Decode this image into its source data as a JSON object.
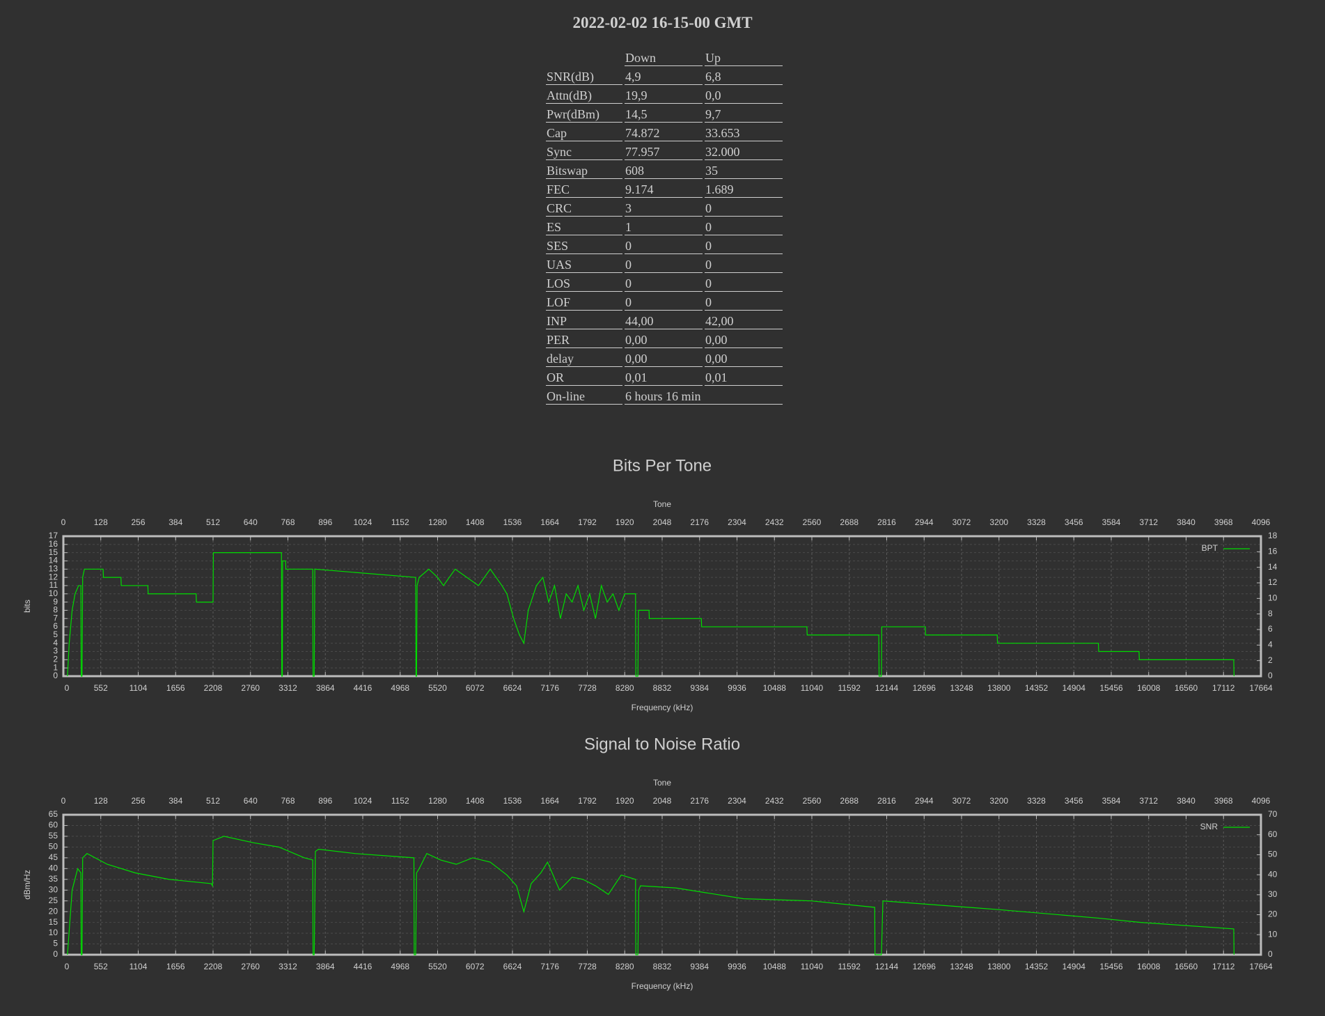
{
  "header": {
    "title": "2022-02-02 16-15-00 GMT"
  },
  "table": {
    "columns": [
      "Down",
      "Up"
    ],
    "rows": [
      [
        "SNR(dB)",
        "4,9",
        "6,8"
      ],
      [
        "Attn(dB)",
        "19,9",
        "0,0"
      ],
      [
        "Pwr(dBm)",
        "14,5",
        "9,7"
      ],
      [
        "Cap",
        "74.872",
        "33.653"
      ],
      [
        "Sync",
        "77.957",
        "32.000"
      ],
      [
        "Bitswap",
        "608",
        "35"
      ],
      [
        "FEC",
        "9.174",
        "1.689"
      ],
      [
        "CRC",
        "3",
        "0"
      ],
      [
        "ES",
        "1",
        "0"
      ],
      [
        "SES",
        "0",
        "0"
      ],
      [
        "UAS",
        "0",
        "0"
      ],
      [
        "LOS",
        "0",
        "0"
      ],
      [
        "LOF",
        "0",
        "0"
      ],
      [
        "INP",
        "44,00",
        "42,00"
      ],
      [
        "PER",
        "0,00",
        "0,00"
      ],
      [
        "delay",
        "0,00",
        "0,00"
      ],
      [
        "OR",
        "0,01",
        "0,01"
      ],
      [
        "On-line",
        "6 hours 16 min"
      ]
    ]
  },
  "chart_data": [
    {
      "type": "line",
      "title": "Bits Per Tone",
      "xlabel": "Tone",
      "x2label": "Frequency (kHz)",
      "ylabel": "bits",
      "xlim": [
        0,
        4096
      ],
      "xticks": [
        0,
        128,
        256,
        384,
        512,
        640,
        768,
        896,
        1024,
        1152,
        1280,
        1408,
        1536,
        1664,
        1792,
        1920,
        2048,
        2176,
        2304,
        2432,
        2560,
        2688,
        2816,
        2944,
        3072,
        3200,
        3328,
        3456,
        3584,
        3712,
        3840,
        3968,
        4096
      ],
      "x2lim": [
        0,
        17664
      ],
      "x2ticks": [
        0,
        552,
        1104,
        1656,
        2208,
        2760,
        3312,
        3864,
        4416,
        4968,
        5520,
        6072,
        6624,
        7176,
        7728,
        8280,
        8832,
        9384,
        9936,
        10488,
        11040,
        11592,
        12144,
        12696,
        13248,
        13800,
        14352,
        14904,
        15456,
        16008,
        16560,
        17112,
        17664
      ],
      "ylim": [
        0,
        17
      ],
      "yticks": [
        0,
        1,
        2,
        3,
        4,
        5,
        6,
        7,
        8,
        9,
        10,
        11,
        12,
        13,
        14,
        15,
        16,
        17
      ],
      "y2lim": [
        0,
        18
      ],
      "y2ticks": [
        0,
        2,
        4,
        6,
        8,
        10,
        12,
        14,
        16,
        18
      ],
      "grid": true,
      "legend": "top-right",
      "x": [
        14,
        20,
        30,
        40,
        52,
        60,
        61,
        64,
        66,
        72,
        136,
        137,
        197,
        198,
        289,
        290,
        454,
        455,
        512,
        513,
        746,
        747,
        749,
        750,
        760,
        761,
        853,
        854,
        858,
        860,
        1205,
        1206,
        1208,
        1210,
        1217,
        1250,
        1280,
        1300,
        1340,
        1380,
        1420,
        1460,
        1500,
        1517,
        1540,
        1560,
        1575,
        1590,
        1618,
        1640,
        1660,
        1680,
        1700,
        1720,
        1740,
        1760,
        1780,
        1800,
        1820,
        1840,
        1860,
        1880,
        1900,
        1920,
        1957,
        1958,
        1965,
        1967,
        2003,
        2004,
        2182,
        2183,
        2543,
        2544,
        2789,
        2790,
        2798,
        2799,
        2948,
        2949,
        3194,
        3195,
        3540,
        3541,
        3679,
        3680,
        4003,
        4004
      ],
      "series": [
        {
          "name": "BPT",
          "color": "#00dd00",
          "values": [
            0,
            4,
            8,
            10,
            11,
            11,
            0,
            0,
            12,
            13,
            13,
            12,
            12,
            11,
            11,
            10,
            10,
            9,
            9,
            15,
            15,
            0,
            0,
            14,
            14,
            13,
            13,
            0,
            0,
            13,
            12,
            0,
            0,
            11,
            12,
            13,
            12,
            11,
            13,
            12,
            11,
            13,
            11,
            10,
            7,
            5,
            4,
            8,
            11,
            12,
            9,
            11,
            7,
            10,
            9,
            11,
            8,
            10,
            7,
            11,
            9,
            10,
            8,
            10,
            10,
            0,
            0,
            8,
            8,
            7,
            7,
            6,
            6,
            5,
            5,
            0,
            0,
            6,
            6,
            5,
            5,
            4,
            4,
            3,
            3,
            2,
            2,
            0
          ]
        }
      ]
    },
    {
      "type": "line",
      "title": "Signal to Noise Ratio",
      "xlabel": "Tone",
      "x2label": "Frequency (kHz)",
      "ylabel": "dBm/Hz",
      "xlim": [
        0,
        4096
      ],
      "xticks": [
        0,
        128,
        256,
        384,
        512,
        640,
        768,
        896,
        1024,
        1152,
        1280,
        1408,
        1536,
        1664,
        1792,
        1920,
        2048,
        2176,
        2304,
        2432,
        2560,
        2688,
        2816,
        2944,
        3072,
        3200,
        3328,
        3456,
        3584,
        3712,
        3840,
        3968,
        4096
      ],
      "x2lim": [
        0,
        17664
      ],
      "x2ticks": [
        0,
        552,
        1104,
        1656,
        2208,
        2760,
        3312,
        3864,
        4416,
        4968,
        5520,
        6072,
        6624,
        7176,
        7728,
        8280,
        8832,
        9384,
        9936,
        10488,
        11040,
        11592,
        12144,
        12696,
        13248,
        13800,
        14352,
        14904,
        15456,
        16008,
        16560,
        17112,
        17664
      ],
      "ylim": [
        0,
        65
      ],
      "yticks": [
        0,
        5,
        10,
        15,
        20,
        25,
        30,
        35,
        40,
        45,
        50,
        55,
        60,
        65
      ],
      "y2lim": [
        0,
        70
      ],
      "y2ticks": [
        0,
        10,
        20,
        30,
        40,
        50,
        60,
        70
      ],
      "grid": true,
      "legend": "top-right",
      "x": [
        14,
        30,
        49,
        60,
        61,
        64,
        66,
        81,
        150,
        246,
        361,
        506,
        510,
        512,
        549,
        650,
        737,
        824,
        853,
        854,
        858,
        862,
        873,
        997,
        1199,
        1200,
        1205,
        1208,
        1217,
        1243,
        1290,
        1344,
        1400,
        1460,
        1517,
        1550,
        1575,
        1600,
        1633,
        1656,
        1697,
        1740,
        1777,
        1820,
        1864,
        1908,
        1957,
        1958,
        1965,
        1968,
        1974,
        2095,
        2327,
        2558,
        2775,
        2776,
        2798,
        2803,
        3194,
        3540,
        3685,
        4003,
        4004
      ],
      "series": [
        {
          "name": "SNR",
          "color": "#00dd00",
          "values": [
            0,
            30,
            40,
            38,
            0,
            0,
            45,
            47,
            42,
            38,
            35,
            33,
            32,
            53,
            55,
            52,
            50,
            45,
            44,
            0,
            0,
            48,
            49,
            47,
            45,
            0,
            0,
            38,
            40,
            47,
            44,
            42,
            45,
            43,
            37,
            32,
            20,
            33,
            38,
            43,
            30,
            36,
            35,
            32,
            28,
            37,
            35,
            0,
            0,
            30,
            32,
            31,
            26,
            25,
            22,
            0,
            0,
            25,
            21,
            17,
            15,
            12,
            0
          ]
        }
      ]
    }
  ]
}
